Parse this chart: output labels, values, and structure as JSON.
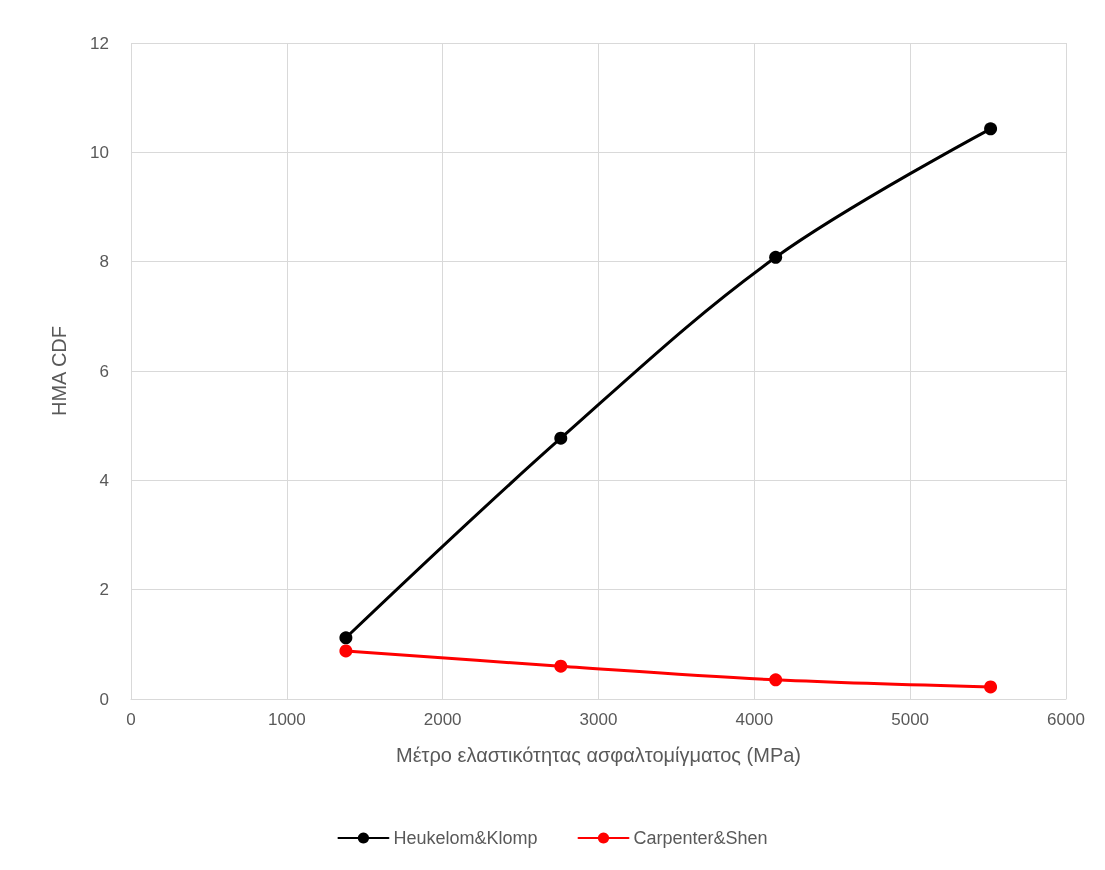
{
  "chart_data": {
    "type": "line",
    "xlabel": "Μέτρο ελαστικότητας ασφαλτομίγματος (MPa)",
    "ylabel": "HMA CDF",
    "x": [
      1379,
      2758,
      4137,
      5516
    ],
    "series": [
      {
        "name": "Heukelom&Klomp",
        "color": "#000000",
        "values": [
          1.12,
          4.77,
          8.08,
          10.43
        ]
      },
      {
        "name": "Carpenter&Shen",
        "color": "#ff0000",
        "values": [
          0.88,
          0.6,
          0.35,
          0.22
        ]
      }
    ],
    "xlim": [
      0,
      6000
    ],
    "xticks": [
      0,
      1000,
      2000,
      3000,
      4000,
      5000,
      6000
    ],
    "ylim": [
      0,
      12
    ],
    "yticks": [
      0,
      2,
      4,
      6,
      8,
      10,
      12
    ],
    "grid": true,
    "legend": "bottom",
    "marker": "circle",
    "line_style": "solid"
  }
}
